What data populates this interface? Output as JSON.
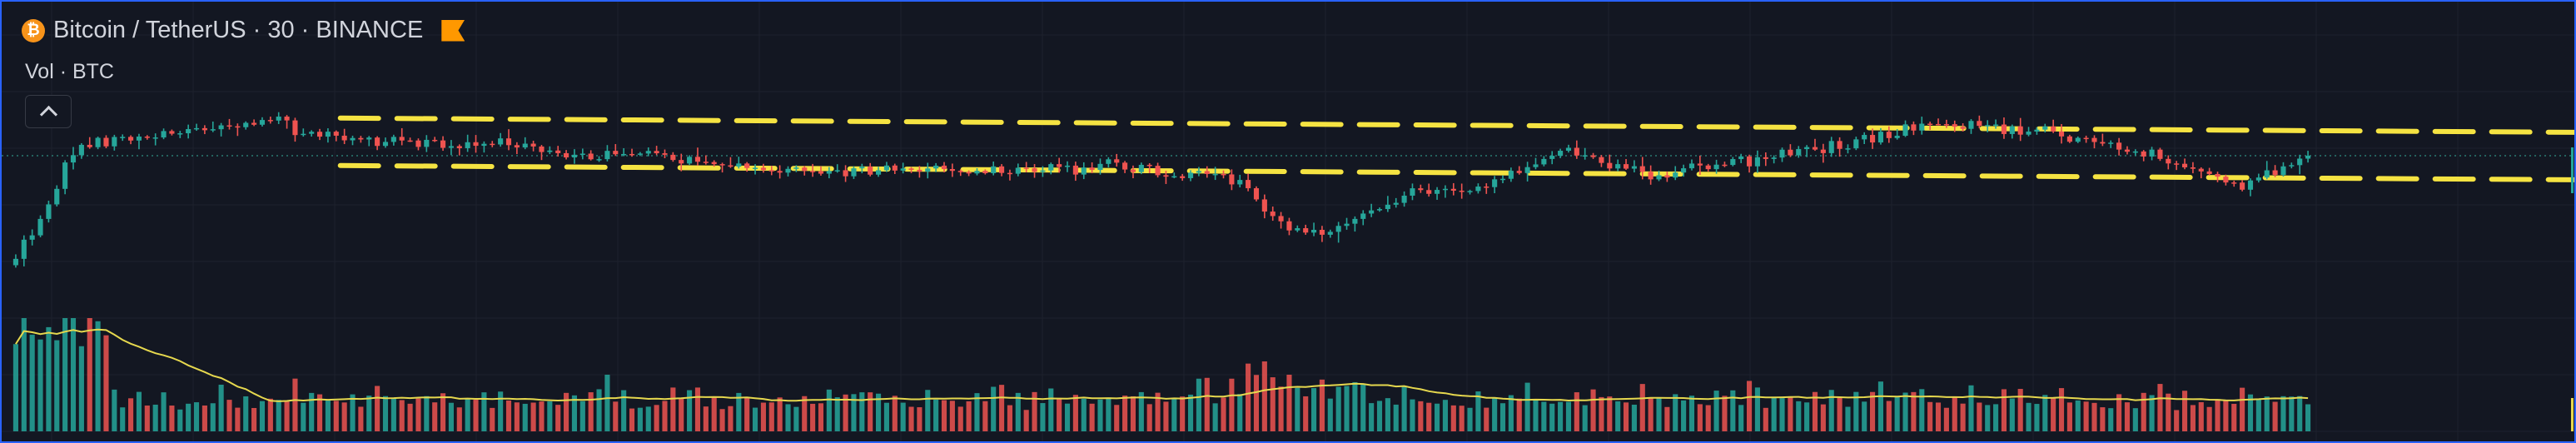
{
  "header": {
    "coin_icon_glyph": "₿",
    "symbol_title": "Bitcoin / TetherUS · 30 · BINANCE",
    "coin_icon": "bitcoin-icon",
    "flag_icon": "flag-icon",
    "flag_color": "#ff9800",
    "coin_color": "#f7931a"
  },
  "volume_pane": {
    "label": "Vol · BTC",
    "collapse_icon": "chevron-up-icon"
  },
  "colors": {
    "background": "#131722",
    "up": "#26a69a",
    "down": "#ef5350",
    "volume_ma": "#e6d84e",
    "channel": "#f5e342",
    "grid": "#1e222d",
    "frame": "#2962ff",
    "price_line": "#2b7a72"
  },
  "chart_data": {
    "type": "candlestick",
    "symbol": "BTCUSDT",
    "exchange": "BINANCE",
    "interval": "30",
    "price_axis_visible": false,
    "time_axis_visible": false,
    "grid": true,
    "candle_shape": {
      "candle_count": 280,
      "seed": 20240611,
      "relative_start": 0.1,
      "relative_anchors": [
        [
          0,
          0.1
        ],
        [
          3,
          0.22
        ],
        [
          8,
          0.58
        ],
        [
          15,
          0.64
        ],
        [
          35,
          0.66
        ],
        [
          34,
          0.72
        ],
        [
          55,
          0.6
        ],
        [
          60,
          0.62
        ],
        [
          65,
          0.58
        ],
        [
          75,
          0.56
        ],
        [
          85,
          0.54
        ],
        [
          100,
          0.49
        ],
        [
          110,
          0.5
        ],
        [
          125,
          0.5
        ],
        [
          135,
          0.52
        ],
        [
          150,
          0.46
        ],
        [
          155,
          0.28
        ],
        [
          160,
          0.22
        ],
        [
          170,
          0.4
        ],
        [
          180,
          0.44
        ],
        [
          190,
          0.58
        ],
        [
          200,
          0.48
        ],
        [
          215,
          0.56
        ],
        [
          225,
          0.62
        ],
        [
          235,
          0.7
        ],
        [
          245,
          0.68
        ],
        [
          255,
          0.62
        ],
        [
          265,
          0.52
        ],
        [
          272,
          0.44
        ],
        [
          280,
          0.54
        ]
      ]
    },
    "channel": {
      "style": "dashed",
      "upper": {
        "start": 0.72,
        "end": 0.66
      },
      "lower": {
        "start": 0.52,
        "end": 0.46
      }
    },
    "volume": {
      "series_name": "Vol · BTC",
      "moving_average": true
    }
  }
}
